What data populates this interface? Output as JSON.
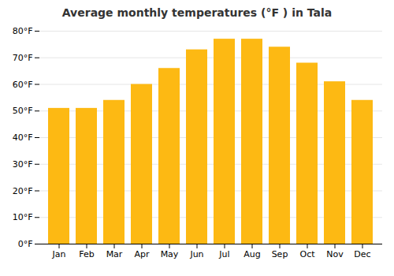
{
  "chart_data": {
    "type": "bar",
    "title": "Average monthly temperatures (°F ) in Tala",
    "categories": [
      "Jan",
      "Feb",
      "Mar",
      "Apr",
      "May",
      "Jun",
      "Jul",
      "Aug",
      "Sep",
      "Oct",
      "Nov",
      "Dec"
    ],
    "values": [
      51,
      51,
      54,
      60,
      66,
      73,
      77,
      77,
      74,
      68,
      61,
      54
    ],
    "color": "#FDB913",
    "ylim": [
      0,
      80
    ],
    "yticks": [
      {
        "value": 0,
        "label": "0°F"
      },
      {
        "value": 10,
        "label": "10°F"
      },
      {
        "value": 20,
        "label": "20°F"
      },
      {
        "value": 30,
        "label": "30°F"
      },
      {
        "value": 40,
        "label": "40°F"
      },
      {
        "value": 50,
        "label": "50°F"
      },
      {
        "value": 60,
        "label": "60°F"
      },
      {
        "value": 70,
        "label": "70°F"
      },
      {
        "value": 80,
        "label": "80°F"
      }
    ],
    "grid": true
  }
}
